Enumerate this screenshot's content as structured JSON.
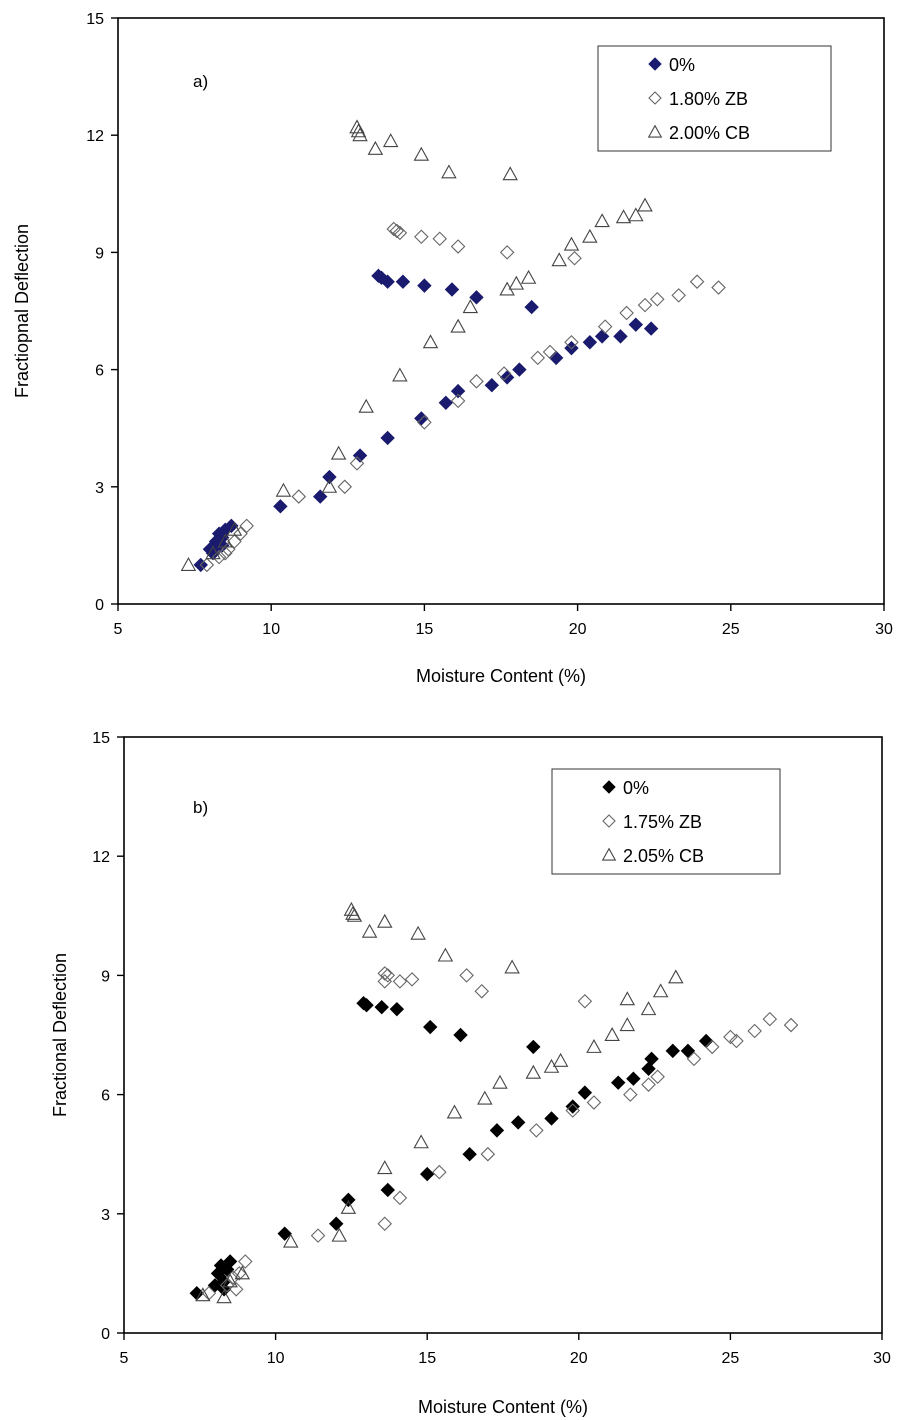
{
  "chart_data": [
    {
      "type": "scatter",
      "panel_label": "a)",
      "xlabel": "Moisture Content (%)",
      "ylabel": "Fractiopnal Deflection",
      "xlim": [
        5,
        30
      ],
      "ylim": [
        0,
        15
      ],
      "xticks": [
        "5",
        "10",
        "15",
        "20",
        "25",
        "30"
      ],
      "yticks": [
        "0",
        "3",
        "6",
        "9",
        "12",
        "15"
      ],
      "grid": false,
      "legend_position": "top-right",
      "series": [
        {
          "name": "0%",
          "marker": "diamond-filled",
          "color": "#1a1a6e",
          "points": [
            [
              7.7,
              1.0
            ],
            [
              8.0,
              1.4
            ],
            [
              8.1,
              1.3
            ],
            [
              8.2,
              1.6
            ],
            [
              8.3,
              1.8
            ],
            [
              8.4,
              1.5
            ],
            [
              8.5,
              1.9
            ],
            [
              8.7,
              2.0
            ],
            [
              8.4,
              1.7
            ],
            [
              8.2,
              1.4
            ],
            [
              10.3,
              2.5
            ],
            [
              11.6,
              2.75
            ],
            [
              11.9,
              3.25
            ],
            [
              12.9,
              3.8
            ],
            [
              13.8,
              4.25
            ],
            [
              14.9,
              4.75
            ],
            [
              15.7,
              5.15
            ],
            [
              16.1,
              5.45
            ],
            [
              17.2,
              5.6
            ],
            [
              17.7,
              5.8
            ],
            [
              18.1,
              6.0
            ],
            [
              19.3,
              6.3
            ],
            [
              19.8,
              6.55
            ],
            [
              20.4,
              6.7
            ],
            [
              20.8,
              6.85
            ],
            [
              21.4,
              6.85
            ],
            [
              21.9,
              7.15
            ],
            [
              22.4,
              7.05
            ],
            [
              13.5,
              8.4
            ],
            [
              13.6,
              8.35
            ],
            [
              13.8,
              8.25
            ],
            [
              14.3,
              8.25
            ],
            [
              15.0,
              8.15
            ],
            [
              15.9,
              8.05
            ],
            [
              16.7,
              7.85
            ],
            [
              18.5,
              7.6
            ]
          ]
        },
        {
          "name": "1.80% ZB",
          "marker": "diamond-open",
          "color": "#666666",
          "points": [
            [
              7.9,
              1.0
            ],
            [
              8.3,
              1.2
            ],
            [
              8.6,
              1.4
            ],
            [
              8.8,
              1.6
            ],
            [
              9.0,
              1.8
            ],
            [
              9.2,
              2.0
            ],
            [
              8.5,
              1.3
            ],
            [
              10.9,
              2.75
            ],
            [
              12.4,
              3.0
            ],
            [
              12.8,
              3.6
            ],
            [
              15.0,
              4.65
            ],
            [
              16.1,
              5.2
            ],
            [
              16.7,
              5.7
            ],
            [
              17.6,
              5.9
            ],
            [
              18.7,
              6.3
            ],
            [
              19.1,
              6.45
            ],
            [
              19.8,
              6.7
            ],
            [
              20.9,
              7.1
            ],
            [
              21.6,
              7.45
            ],
            [
              22.2,
              7.65
            ],
            [
              22.6,
              7.8
            ],
            [
              23.3,
              7.9
            ],
            [
              23.9,
              8.25
            ],
            [
              24.6,
              8.1
            ],
            [
              14.0,
              9.6
            ],
            [
              14.2,
              9.5
            ],
            [
              14.1,
              9.55
            ],
            [
              14.9,
              9.4
            ],
            [
              15.5,
              9.35
            ],
            [
              16.1,
              9.15
            ],
            [
              17.7,
              9.0
            ],
            [
              19.9,
              8.85
            ]
          ]
        },
        {
          "name": "2.00% CB",
          "marker": "triangle-open",
          "color": "#444444",
          "points": [
            [
              7.3,
              1.0
            ],
            [
              8.1,
              1.3
            ],
            [
              8.5,
              1.6
            ],
            [
              8.8,
              1.9
            ],
            [
              10.4,
              2.9
            ],
            [
              11.9,
              3.0
            ],
            [
              12.2,
              3.85
            ],
            [
              13.1,
              5.05
            ],
            [
              14.2,
              5.85
            ],
            [
              15.2,
              6.7
            ],
            [
              16.1,
              7.1
            ],
            [
              16.5,
              7.6
            ],
            [
              17.7,
              8.05
            ],
            [
              18.0,
              8.2
            ],
            [
              18.4,
              8.35
            ],
            [
              19.4,
              8.8
            ],
            [
              19.8,
              9.2
            ],
            [
              20.4,
              9.4
            ],
            [
              20.8,
              9.8
            ],
            [
              21.5,
              9.9
            ],
            [
              21.9,
              9.95
            ],
            [
              22.2,
              10.2
            ],
            [
              12.8,
              12.2
            ],
            [
              12.85,
              12.1
            ],
            [
              12.9,
              12.0
            ],
            [
              13.4,
              11.65
            ],
            [
              13.9,
              11.85
            ],
            [
              14.9,
              11.5
            ],
            [
              15.8,
              11.05
            ],
            [
              17.8,
              11.0
            ]
          ]
        }
      ]
    },
    {
      "type": "scatter",
      "panel_label": "b)",
      "xlabel": "Moisture Content (%)",
      "ylabel": "Fractional Deflection",
      "xlim": [
        5,
        30
      ],
      "ylim": [
        0,
        15
      ],
      "xticks": [
        "5",
        "10",
        "15",
        "20",
        "25",
        "30"
      ],
      "yticks": [
        "0",
        "3",
        "6",
        "9",
        "12",
        "15"
      ],
      "grid": false,
      "legend_position": "top-right",
      "series": [
        {
          "name": "0%",
          "marker": "diamond-filled",
          "color": "#000000",
          "points": [
            [
              7.4,
              1.0
            ],
            [
              8.0,
              1.2
            ],
            [
              8.1,
              1.5
            ],
            [
              8.2,
              1.7
            ],
            [
              8.3,
              1.3
            ],
            [
              8.4,
              1.6
            ],
            [
              8.5,
              1.8
            ],
            [
              8.3,
              1.1
            ],
            [
              10.3,
              2.5
            ],
            [
              12.0,
              2.75
            ],
            [
              12.4,
              3.35
            ],
            [
              13.7,
              3.6
            ],
            [
              15.0,
              4.0
            ],
            [
              16.4,
              4.5
            ],
            [
              17.3,
              5.1
            ],
            [
              18.0,
              5.3
            ],
            [
              19.1,
              5.4
            ],
            [
              19.8,
              5.7
            ],
            [
              20.2,
              6.05
            ],
            [
              21.3,
              6.3
            ],
            [
              21.8,
              6.4
            ],
            [
              22.3,
              6.65
            ],
            [
              22.4,
              6.9
            ],
            [
              23.1,
              7.1
            ],
            [
              23.6,
              7.1
            ],
            [
              24.2,
              7.35
            ],
            [
              12.9,
              8.3
            ],
            [
              13.0,
              8.25
            ],
            [
              13.5,
              8.2
            ],
            [
              14.0,
              8.15
            ],
            [
              15.1,
              7.7
            ],
            [
              16.1,
              7.5
            ],
            [
              18.5,
              7.2
            ]
          ]
        },
        {
          "name": "1.75% ZB",
          "marker": "diamond-open",
          "color": "#666666",
          "points": [
            [
              7.8,
              1.0
            ],
            [
              8.4,
              1.2
            ],
            [
              8.6,
              1.4
            ],
            [
              8.8,
              1.5
            ],
            [
              9.0,
              1.8
            ],
            [
              8.7,
              1.1
            ],
            [
              11.4,
              2.45
            ],
            [
              13.6,
              2.75
            ],
            [
              14.1,
              3.4
            ],
            [
              15.4,
              4.05
            ],
            [
              17.0,
              4.5
            ],
            [
              18.6,
              5.1
            ],
            [
              19.8,
              5.6
            ],
            [
              20.5,
              5.8
            ],
            [
              21.7,
              6.0
            ],
            [
              22.3,
              6.25
            ],
            [
              22.6,
              6.45
            ],
            [
              23.8,
              6.9
            ],
            [
              24.4,
              7.2
            ],
            [
              25.0,
              7.45
            ],
            [
              25.2,
              7.35
            ],
            [
              25.8,
              7.6
            ],
            [
              26.3,
              7.9
            ],
            [
              27.0,
              7.75
            ],
            [
              13.6,
              9.05
            ],
            [
              13.7,
              9.0
            ],
            [
              13.6,
              8.85
            ],
            [
              14.1,
              8.85
            ],
            [
              14.5,
              8.9
            ],
            [
              16.3,
              9.0
            ],
            [
              16.8,
              8.6
            ],
            [
              20.2,
              8.35
            ]
          ]
        },
        {
          "name": "2.05% CB",
          "marker": "triangle-open",
          "color": "#444444",
          "points": [
            [
              7.6,
              0.95
            ],
            [
              8.3,
              0.9
            ],
            [
              8.5,
              1.3
            ],
            [
              8.9,
              1.5
            ],
            [
              10.5,
              2.3
            ],
            [
              12.1,
              2.45
            ],
            [
              12.4,
              3.15
            ],
            [
              13.6,
              4.15
            ],
            [
              14.8,
              4.8
            ],
            [
              15.9,
              5.55
            ],
            [
              16.9,
              5.9
            ],
            [
              17.4,
              6.3
            ],
            [
              18.5,
              6.55
            ],
            [
              19.1,
              6.7
            ],
            [
              19.4,
              6.85
            ],
            [
              20.5,
              7.2
            ],
            [
              21.1,
              7.5
            ],
            [
              21.6,
              7.75
            ],
            [
              22.3,
              8.15
            ],
            [
              22.7,
              8.6
            ],
            [
              23.2,
              8.95
            ],
            [
              12.5,
              10.65
            ],
            [
              12.55,
              10.55
            ],
            [
              12.6,
              10.5
            ],
            [
              13.1,
              10.1
            ],
            [
              13.6,
              10.35
            ],
            [
              14.7,
              10.05
            ],
            [
              15.6,
              9.5
            ],
            [
              17.8,
              9.2
            ],
            [
              21.6,
              8.4
            ]
          ]
        }
      ]
    }
  ]
}
